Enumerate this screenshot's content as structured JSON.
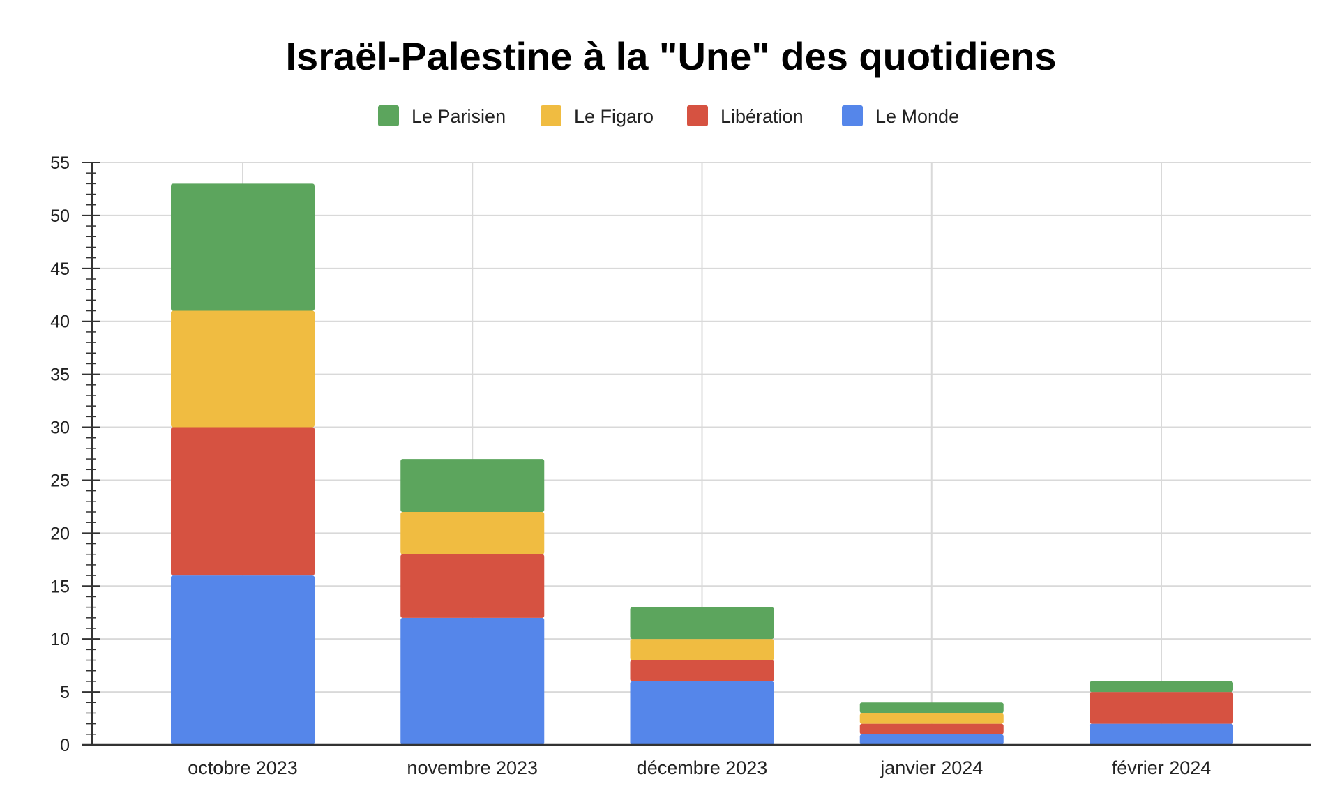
{
  "chart_data": {
    "type": "bar",
    "stacked": true,
    "title": "Israël-Palestine à la \"Une\" des quotidiens",
    "categories": [
      "octobre 2023",
      "novembre 2023",
      "décembre 2023",
      "janvier 2024",
      "février 2024"
    ],
    "series": [
      {
        "name": "Le Monde",
        "color": "#5586ea",
        "values": [
          16,
          12,
          6,
          1,
          2
        ]
      },
      {
        "name": "Libération",
        "color": "#d65241",
        "values": [
          14,
          6,
          2,
          1,
          3
        ]
      },
      {
        "name": "Le Figaro",
        "color": "#f0bc41",
        "values": [
          11,
          4,
          2,
          1,
          0
        ]
      },
      {
        "name": "Le Parisien",
        "color": "#5ca55d",
        "values": [
          12,
          5,
          3,
          1,
          1
        ]
      }
    ],
    "legend_order": [
      "Le Parisien",
      "Le Figaro",
      "Libération",
      "Le Monde"
    ],
    "legend_position": "top",
    "ylim": [
      0,
      55
    ],
    "yticks": [
      0,
      5,
      10,
      15,
      20,
      25,
      30,
      35,
      40,
      45,
      50,
      55
    ],
    "ytick_labels": [
      "0",
      "5",
      "10",
      "15",
      "20",
      "25",
      "30",
      "35",
      "40",
      "45",
      "50",
      "55"
    ],
    "grid": true,
    "xlabel": "",
    "ylabel": ""
  }
}
